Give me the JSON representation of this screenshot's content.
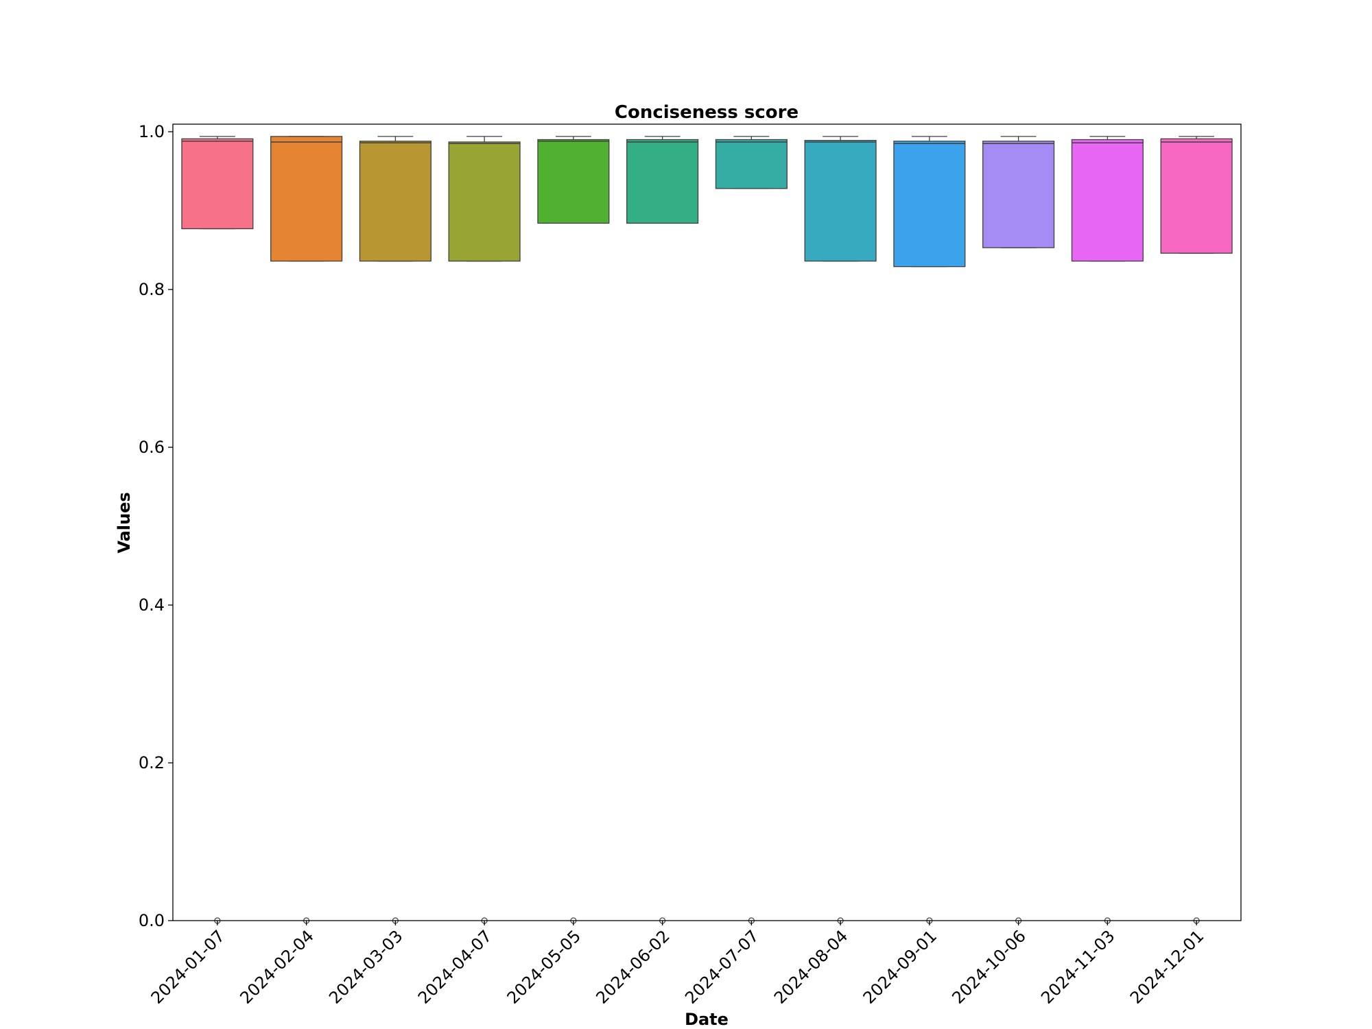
{
  "chart_data": {
    "type": "box",
    "title": "Conciseness score",
    "xlabel": "Date",
    "ylabel": "Values",
    "ylim": [
      0,
      1.0
    ],
    "yticks": [
      "0.0",
      "0.2",
      "0.4",
      "0.6",
      "0.8",
      "1.0"
    ],
    "grid": false,
    "legend": "none",
    "categories": [
      "2024-01-07",
      "2024-02-04",
      "2024-03-03",
      "2024-04-07",
      "2024-05-05",
      "2024-06-02",
      "2024-07-07",
      "2024-08-04",
      "2024-09-01",
      "2024-10-06",
      "2024-11-03",
      "2024-12-01"
    ],
    "boxes": [
      {
        "q1": 0.877,
        "median": 0.988,
        "q3": 0.991,
        "whisker_low": 0.877,
        "whisker_high": 0.994,
        "outliers": [
          0.0
        ],
        "color": "#f77189"
      },
      {
        "q1": 0.836,
        "median": 0.987,
        "q3": 0.994,
        "whisker_low": 0.836,
        "whisker_high": 0.994,
        "outliers": [
          0.0
        ],
        "color": "#e58432"
      },
      {
        "q1": 0.836,
        "median": 0.986,
        "q3": 0.988,
        "whisker_low": 0.836,
        "whisker_high": 0.994,
        "outliers": [
          0.0
        ],
        "color": "#b89733"
      },
      {
        "q1": 0.836,
        "median": 0.985,
        "q3": 0.987,
        "whisker_low": 0.836,
        "whisker_high": 0.994,
        "outliers": [
          0.0
        ],
        "color": "#98a434"
      },
      {
        "q1": 0.884,
        "median": 0.988,
        "q3": 0.99,
        "whisker_low": 0.884,
        "whisker_high": 0.994,
        "outliers": [
          0.0
        ],
        "color": "#50b131"
      },
      {
        "q1": 0.884,
        "median": 0.987,
        "q3": 0.99,
        "whisker_low": 0.884,
        "whisker_high": 0.994,
        "outliers": [
          0.0
        ],
        "color": "#34ae84"
      },
      {
        "q1": 0.928,
        "median": 0.987,
        "q3": 0.99,
        "whisker_low": 0.928,
        "whisker_high": 0.994,
        "outliers": [
          0.0
        ],
        "color": "#36ada4"
      },
      {
        "q1": 0.836,
        "median": 0.987,
        "q3": 0.989,
        "whisker_low": 0.836,
        "whisker_high": 0.994,
        "outliers": [
          0.0
        ],
        "color": "#38aabf"
      },
      {
        "q1": 0.829,
        "median": 0.985,
        "q3": 0.988,
        "whisker_low": 0.829,
        "whisker_high": 0.994,
        "outliers": [
          0.0
        ],
        "color": "#3ba3ec"
      },
      {
        "q1": 0.853,
        "median": 0.985,
        "q3": 0.988,
        "whisker_low": 0.853,
        "whisker_high": 0.994,
        "outliers": [
          0.0
        ],
        "color": "#a48cf4"
      },
      {
        "q1": 0.836,
        "median": 0.986,
        "q3": 0.99,
        "whisker_low": 0.836,
        "whisker_high": 0.994,
        "outliers": [
          0.0
        ],
        "color": "#e866f4"
      },
      {
        "q1": 0.846,
        "median": 0.987,
        "q3": 0.991,
        "whisker_low": 0.846,
        "whisker_high": 0.994,
        "outliers": [
          0.0
        ],
        "color": "#f668c2"
      }
    ]
  }
}
